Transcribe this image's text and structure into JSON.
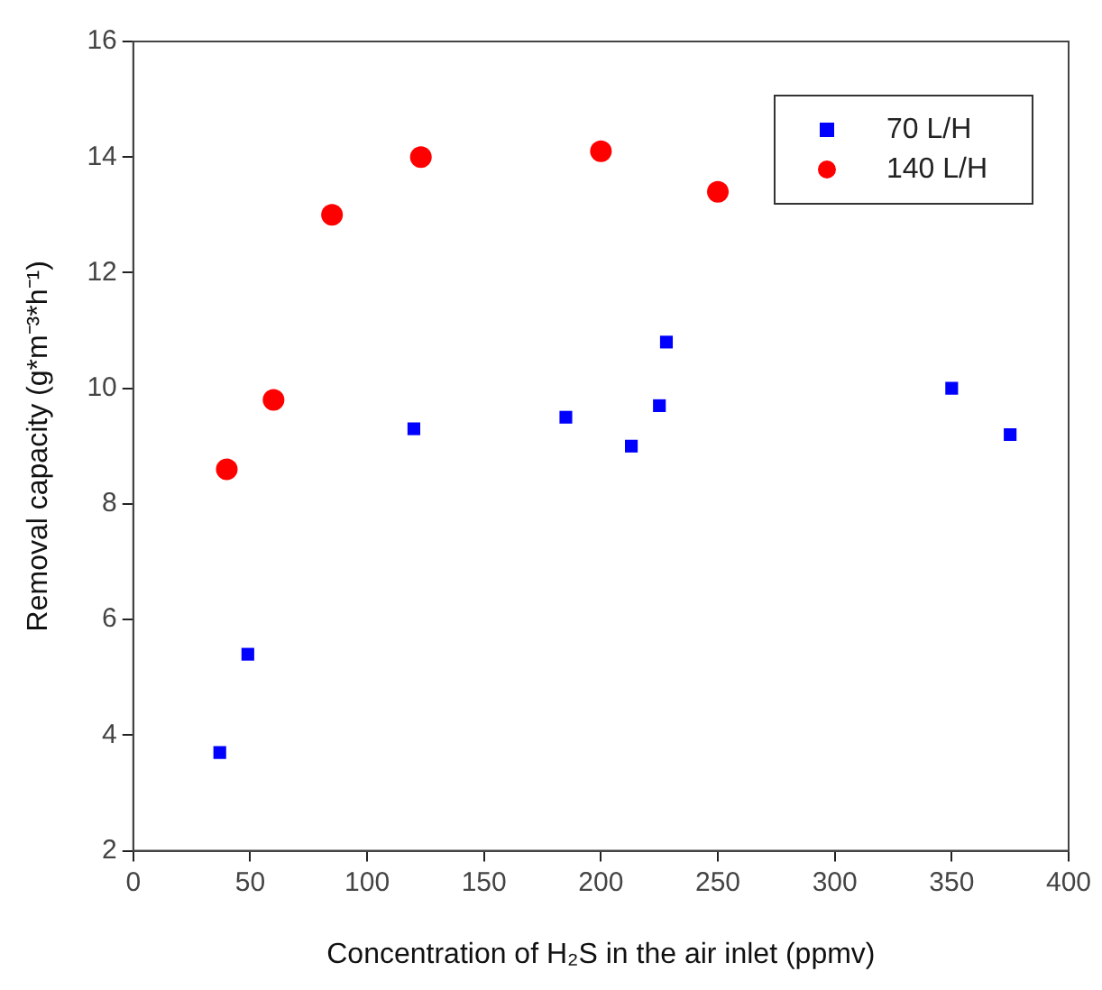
{
  "chart_data": {
    "type": "scatter",
    "xlabel": "Concentration of H₂S in the air inlet (ppmv)",
    "ylabel": "Removal capacity (g*m⁻³*h⁻¹)",
    "xlim": [
      0,
      400
    ],
    "xticks": [
      0,
      50,
      100,
      150,
      200,
      250,
      300,
      350,
      400
    ],
    "ylim": [
      2,
      16
    ],
    "yticks": [
      2,
      4,
      6,
      8,
      10,
      12,
      14,
      16
    ],
    "grid": false,
    "legend": "top right",
    "series": [
      {
        "name": "70 L/H",
        "color": "#0000ff",
        "marker": "square",
        "x": [
          37,
          49,
          120,
          185,
          213,
          225,
          228,
          350,
          375
        ],
        "values": [
          3.7,
          5.4,
          9.3,
          9.5,
          9.0,
          9.7,
          10.8,
          10.0,
          9.2
        ]
      },
      {
        "name": "140 L/H",
        "color": "#ff0000",
        "marker": "circle",
        "x": [
          40,
          60,
          85,
          123,
          200,
          250
        ],
        "values": [
          8.6,
          9.8,
          13.0,
          14.0,
          14.1,
          13.4
        ]
      }
    ]
  }
}
